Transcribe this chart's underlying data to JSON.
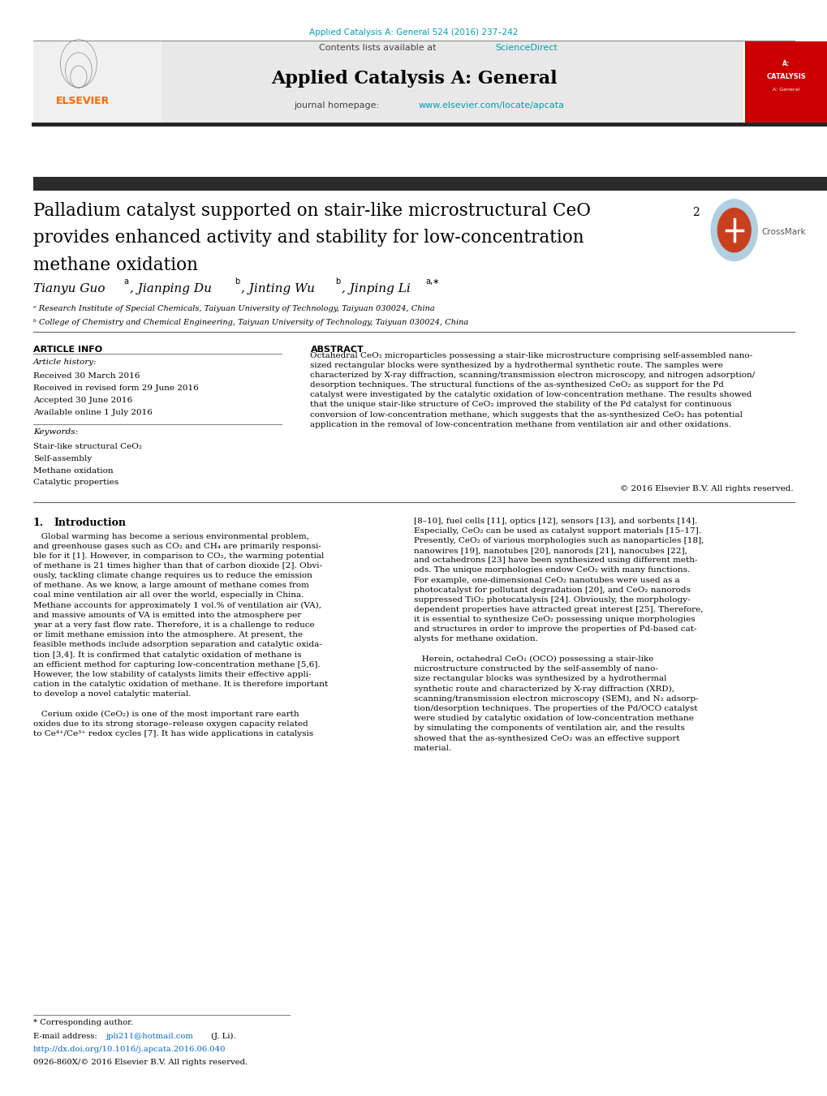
{
  "page_width": 10.2,
  "page_height": 13.51,
  "bg_color": "#ffffff",
  "top_citation": "Applied Catalysis A: General 524 (2016) 237–242",
  "top_citation_color": "#00a0b0",
  "journal_name": "Applied Catalysis A: General",
  "sciencedirect_color": "#00a0b0",
  "journal_url": "www.elsevier.com/locate/apcata",
  "journal_url_color": "#00a0b0",
  "kw1": "Stair-like structural CeO₂",
  "kw2": "Self-assembly",
  "kw3": "Methane oxidation",
  "kw4": "Catalytic properties",
  "footnote_doi": "http://dx.doi.org/10.1016/j.apcata.2016.06.040",
  "footnote_issn": "0926-860X/© 2016 Elsevier B.V. All rights reserved."
}
